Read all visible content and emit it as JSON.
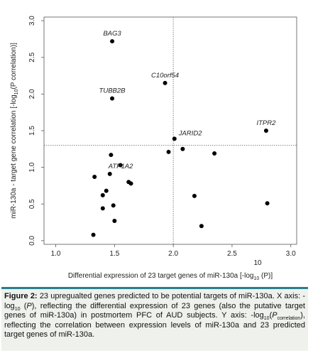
{
  "chart_data": {
    "type": "scatter",
    "xlabel_pre": "Differential expression of 23 target genes of miR-130a [-log",
    "xlabel_sub": "10",
    "xlabel_post": " (P)]",
    "ylabel_pre": "miR-130a - target gene correlation [-log",
    "ylabel_sub": "10",
    "ylabel_post": "(P correlation)]",
    "xlim": [
      0.9,
      3.05
    ],
    "ylim": [
      -0.05,
      3.05
    ],
    "x_ticks": [
      "1.0",
      "1.5",
      "2.0",
      "2.5",
      "3.0"
    ],
    "x_tick_values": [
      1.0,
      1.5,
      2.0,
      2.5,
      3.0
    ],
    "y_ticks": [
      "0.0",
      "0.5",
      "1.0",
      "1.5",
      "2.0",
      "2.5",
      "3.0"
    ],
    "y_tick_values": [
      0.0,
      0.5,
      1.0,
      1.5,
      2.0,
      2.5,
      3.0
    ],
    "threshold_x": 2.0,
    "threshold_y": 1.3,
    "stray_label": "10",
    "points": [
      {
        "x": 1.48,
        "y": 2.72,
        "label": "BAG3"
      },
      {
        "x": 1.93,
        "y": 2.15,
        "label": "C10orf54"
      },
      {
        "x": 1.48,
        "y": 1.94,
        "label": "TUBB2B"
      },
      {
        "x": 2.79,
        "y": 1.5,
        "label": "ITPR2"
      },
      {
        "x": 2.01,
        "y": 1.39,
        "label": "JARID2"
      },
      {
        "x": 2.08,
        "y": 1.25,
        "label": ""
      },
      {
        "x": 1.96,
        "y": 1.21,
        "label": ""
      },
      {
        "x": 2.35,
        "y": 1.19,
        "label": ""
      },
      {
        "x": 1.47,
        "y": 1.17,
        "label": ""
      },
      {
        "x": 1.55,
        "y": 1.03,
        "label": ""
      },
      {
        "x": 1.46,
        "y": 0.91,
        "label": "ATP1A2"
      },
      {
        "x": 1.33,
        "y": 0.87,
        "label": ""
      },
      {
        "x": 1.62,
        "y": 0.8,
        "label": ""
      },
      {
        "x": 1.64,
        "y": 0.78,
        "label": ""
      },
      {
        "x": 1.43,
        "y": 0.68,
        "label": ""
      },
      {
        "x": 1.4,
        "y": 0.62,
        "label": ""
      },
      {
        "x": 2.18,
        "y": 0.61,
        "label": ""
      },
      {
        "x": 2.8,
        "y": 0.51,
        "label": ""
      },
      {
        "x": 1.49,
        "y": 0.48,
        "label": ""
      },
      {
        "x": 1.4,
        "y": 0.44,
        "label": ""
      },
      {
        "x": 1.5,
        "y": 0.27,
        "label": ""
      },
      {
        "x": 2.24,
        "y": 0.2,
        "label": ""
      },
      {
        "x": 1.32,
        "y": 0.08,
        "label": ""
      }
    ]
  },
  "caption": {
    "fig_label": "Figure 2:",
    "part1": " 23 upregualted genes predicted to be potential targets of miR-130a. X axis: -log",
    "sub1": "10",
    "part2": " (",
    "p1": "P",
    "part3": "), reflecting the differential expression of 23 genes (also the putative target genes of miR-130a) in postmortem PFC of AUD subjects. Y axis: -log",
    "sub2": "10",
    "part4": "(",
    "p2": "P",
    "sub3": "correlation",
    "part5": "), reflecting the correlation between expression levels of miR-130a and 23 predicted target genes of miR-130a."
  }
}
